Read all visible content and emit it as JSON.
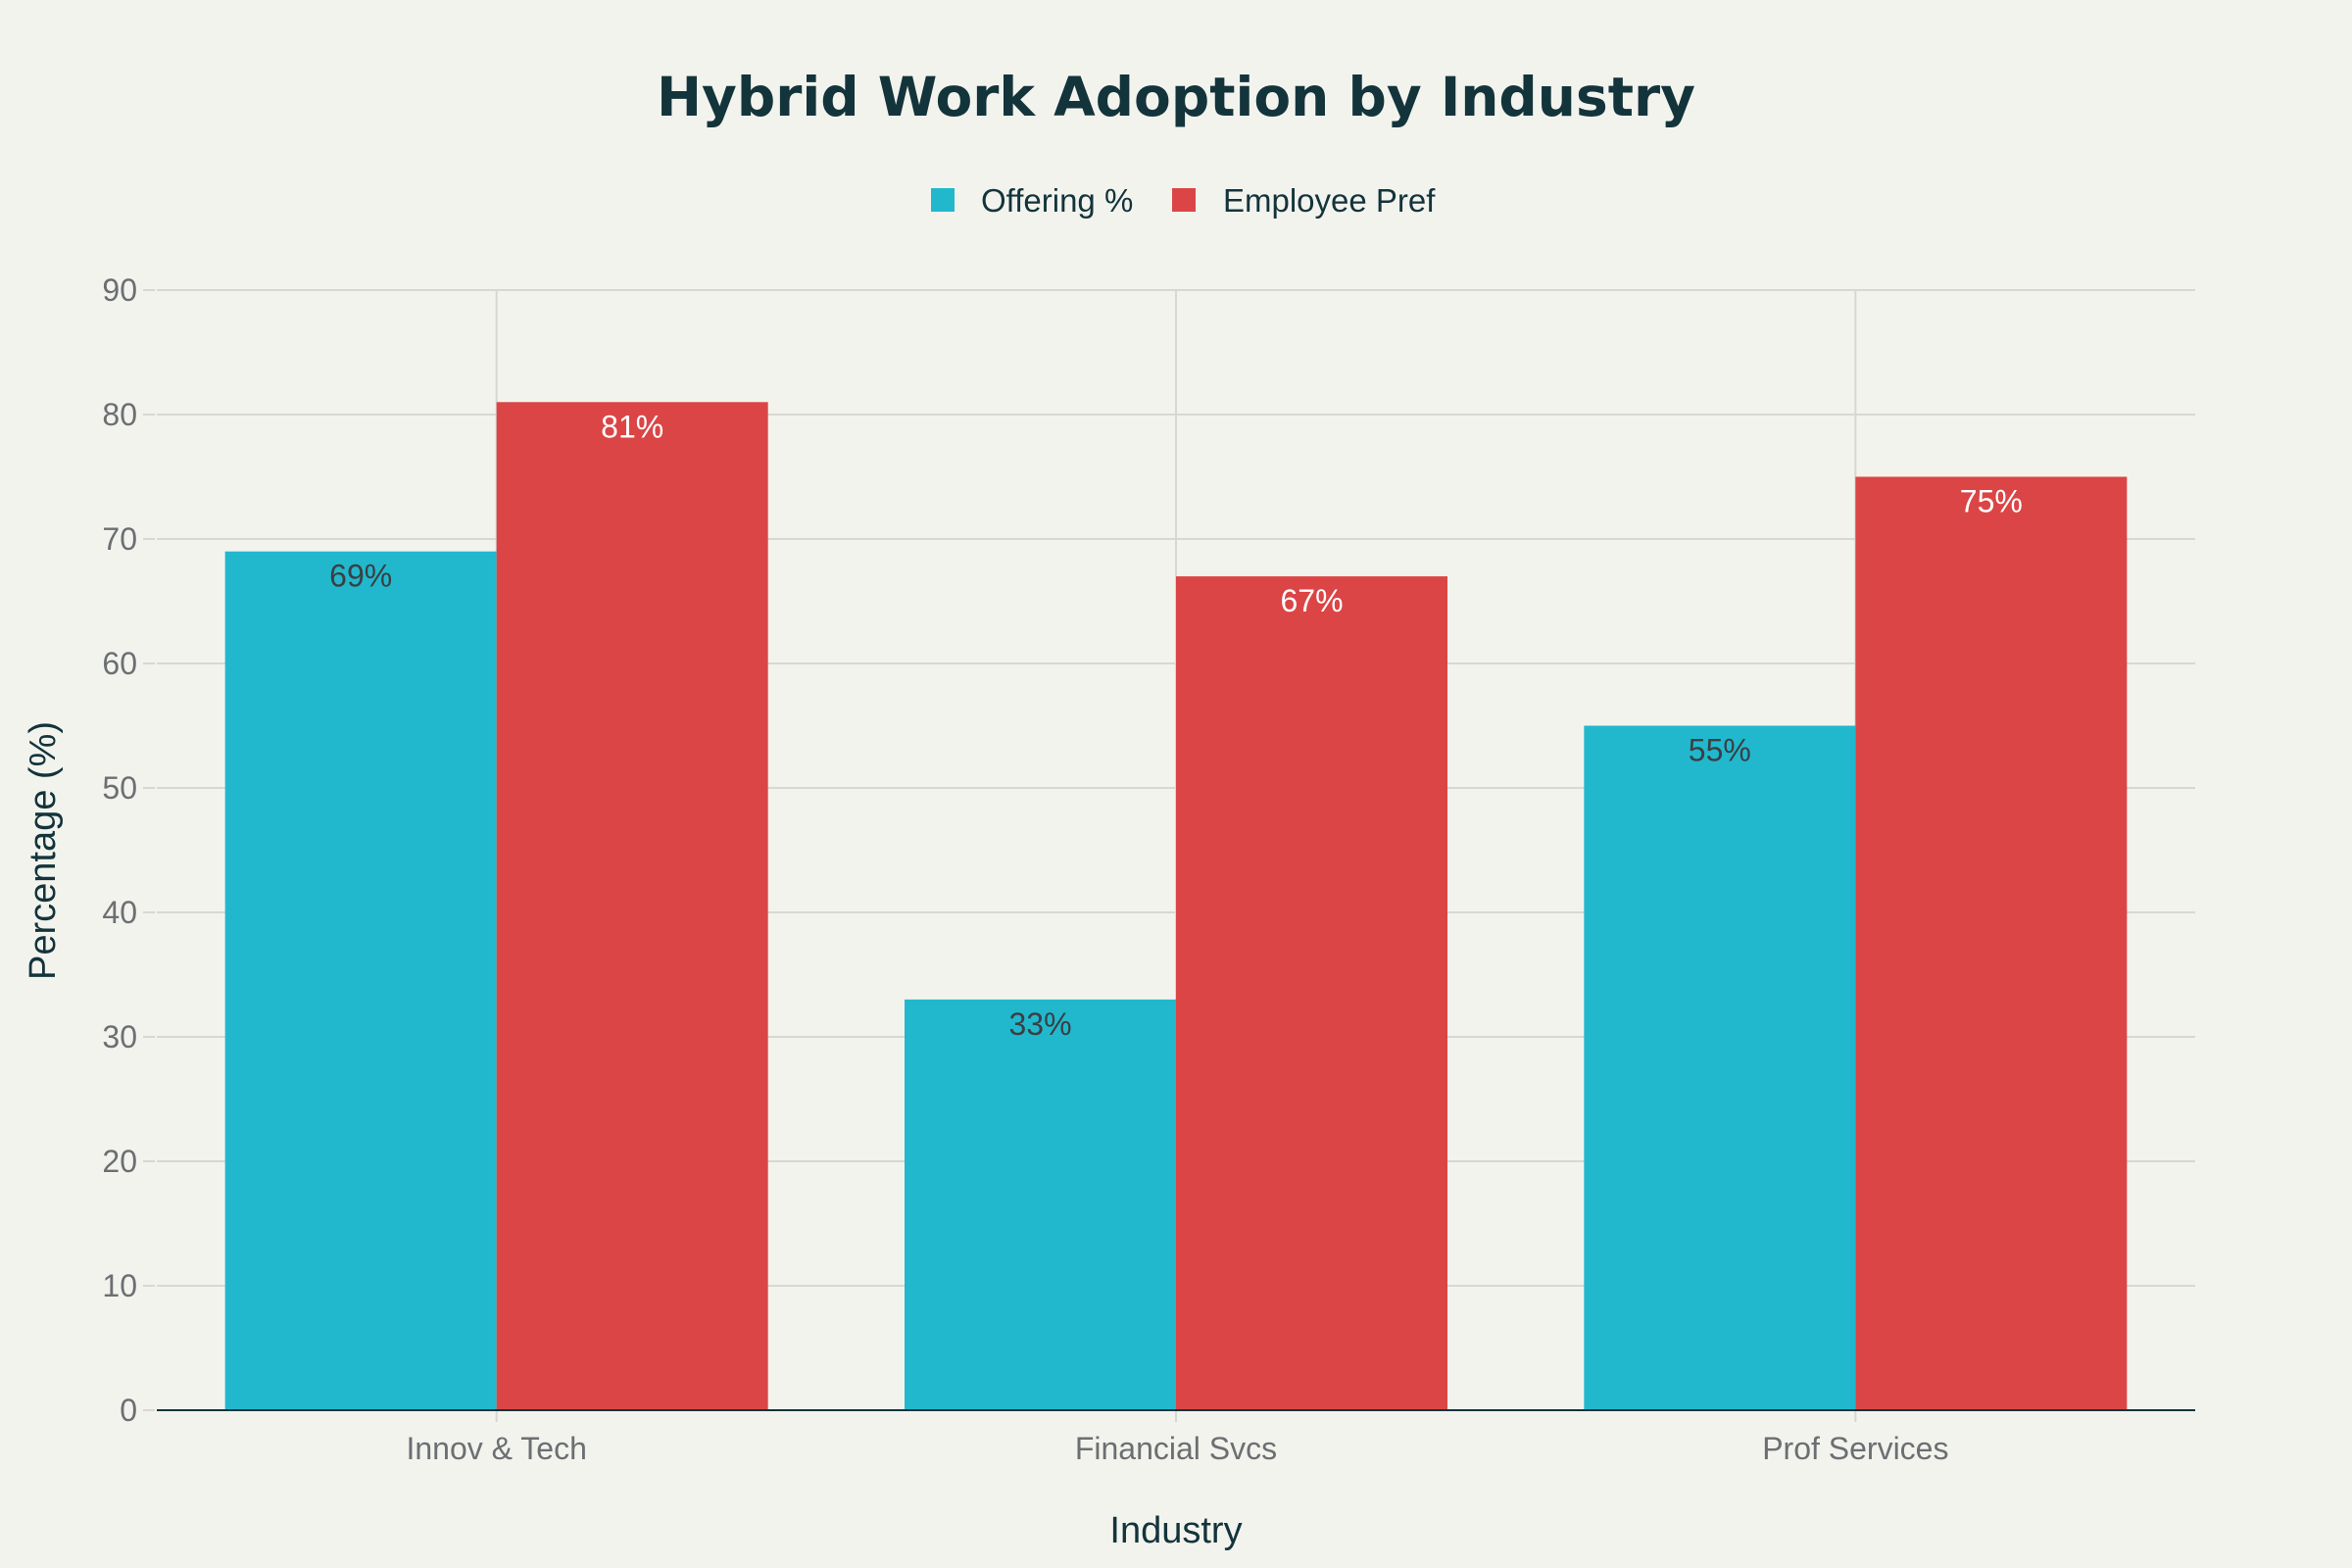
{
  "chart_data": {
    "type": "bar",
    "title": "Hybrid Work Adoption by Industry",
    "xlabel": "Industry",
    "ylabel": "Percentage (%)",
    "categories": [
      "Innov & Tech",
      "Financial Svcs",
      "Prof Services"
    ],
    "series": [
      {
        "name": "Offering %",
        "values": [
          69,
          33,
          55
        ],
        "labels": [
          "69%",
          "33%",
          "55%"
        ],
        "color": "#21b8cd",
        "label_color": "#3a3f44"
      },
      {
        "name": "Employee Pref",
        "values": [
          81,
          67,
          75
        ],
        "labels": [
          "81%",
          "67%",
          "75%"
        ],
        "color": "#db4545",
        "label_color": "#ffffff"
      }
    ],
    "ylim": [
      0,
      90
    ],
    "yticks": [
      0,
      10,
      20,
      30,
      40,
      50,
      60,
      70,
      80,
      90
    ],
    "grid": true,
    "legend_position": "top-center"
  },
  "colors": {
    "background": "#f3f3ee",
    "grid": "#d8d8d3",
    "axis": "#13343b",
    "title": "#13343b",
    "tick": "#6b6f72"
  }
}
